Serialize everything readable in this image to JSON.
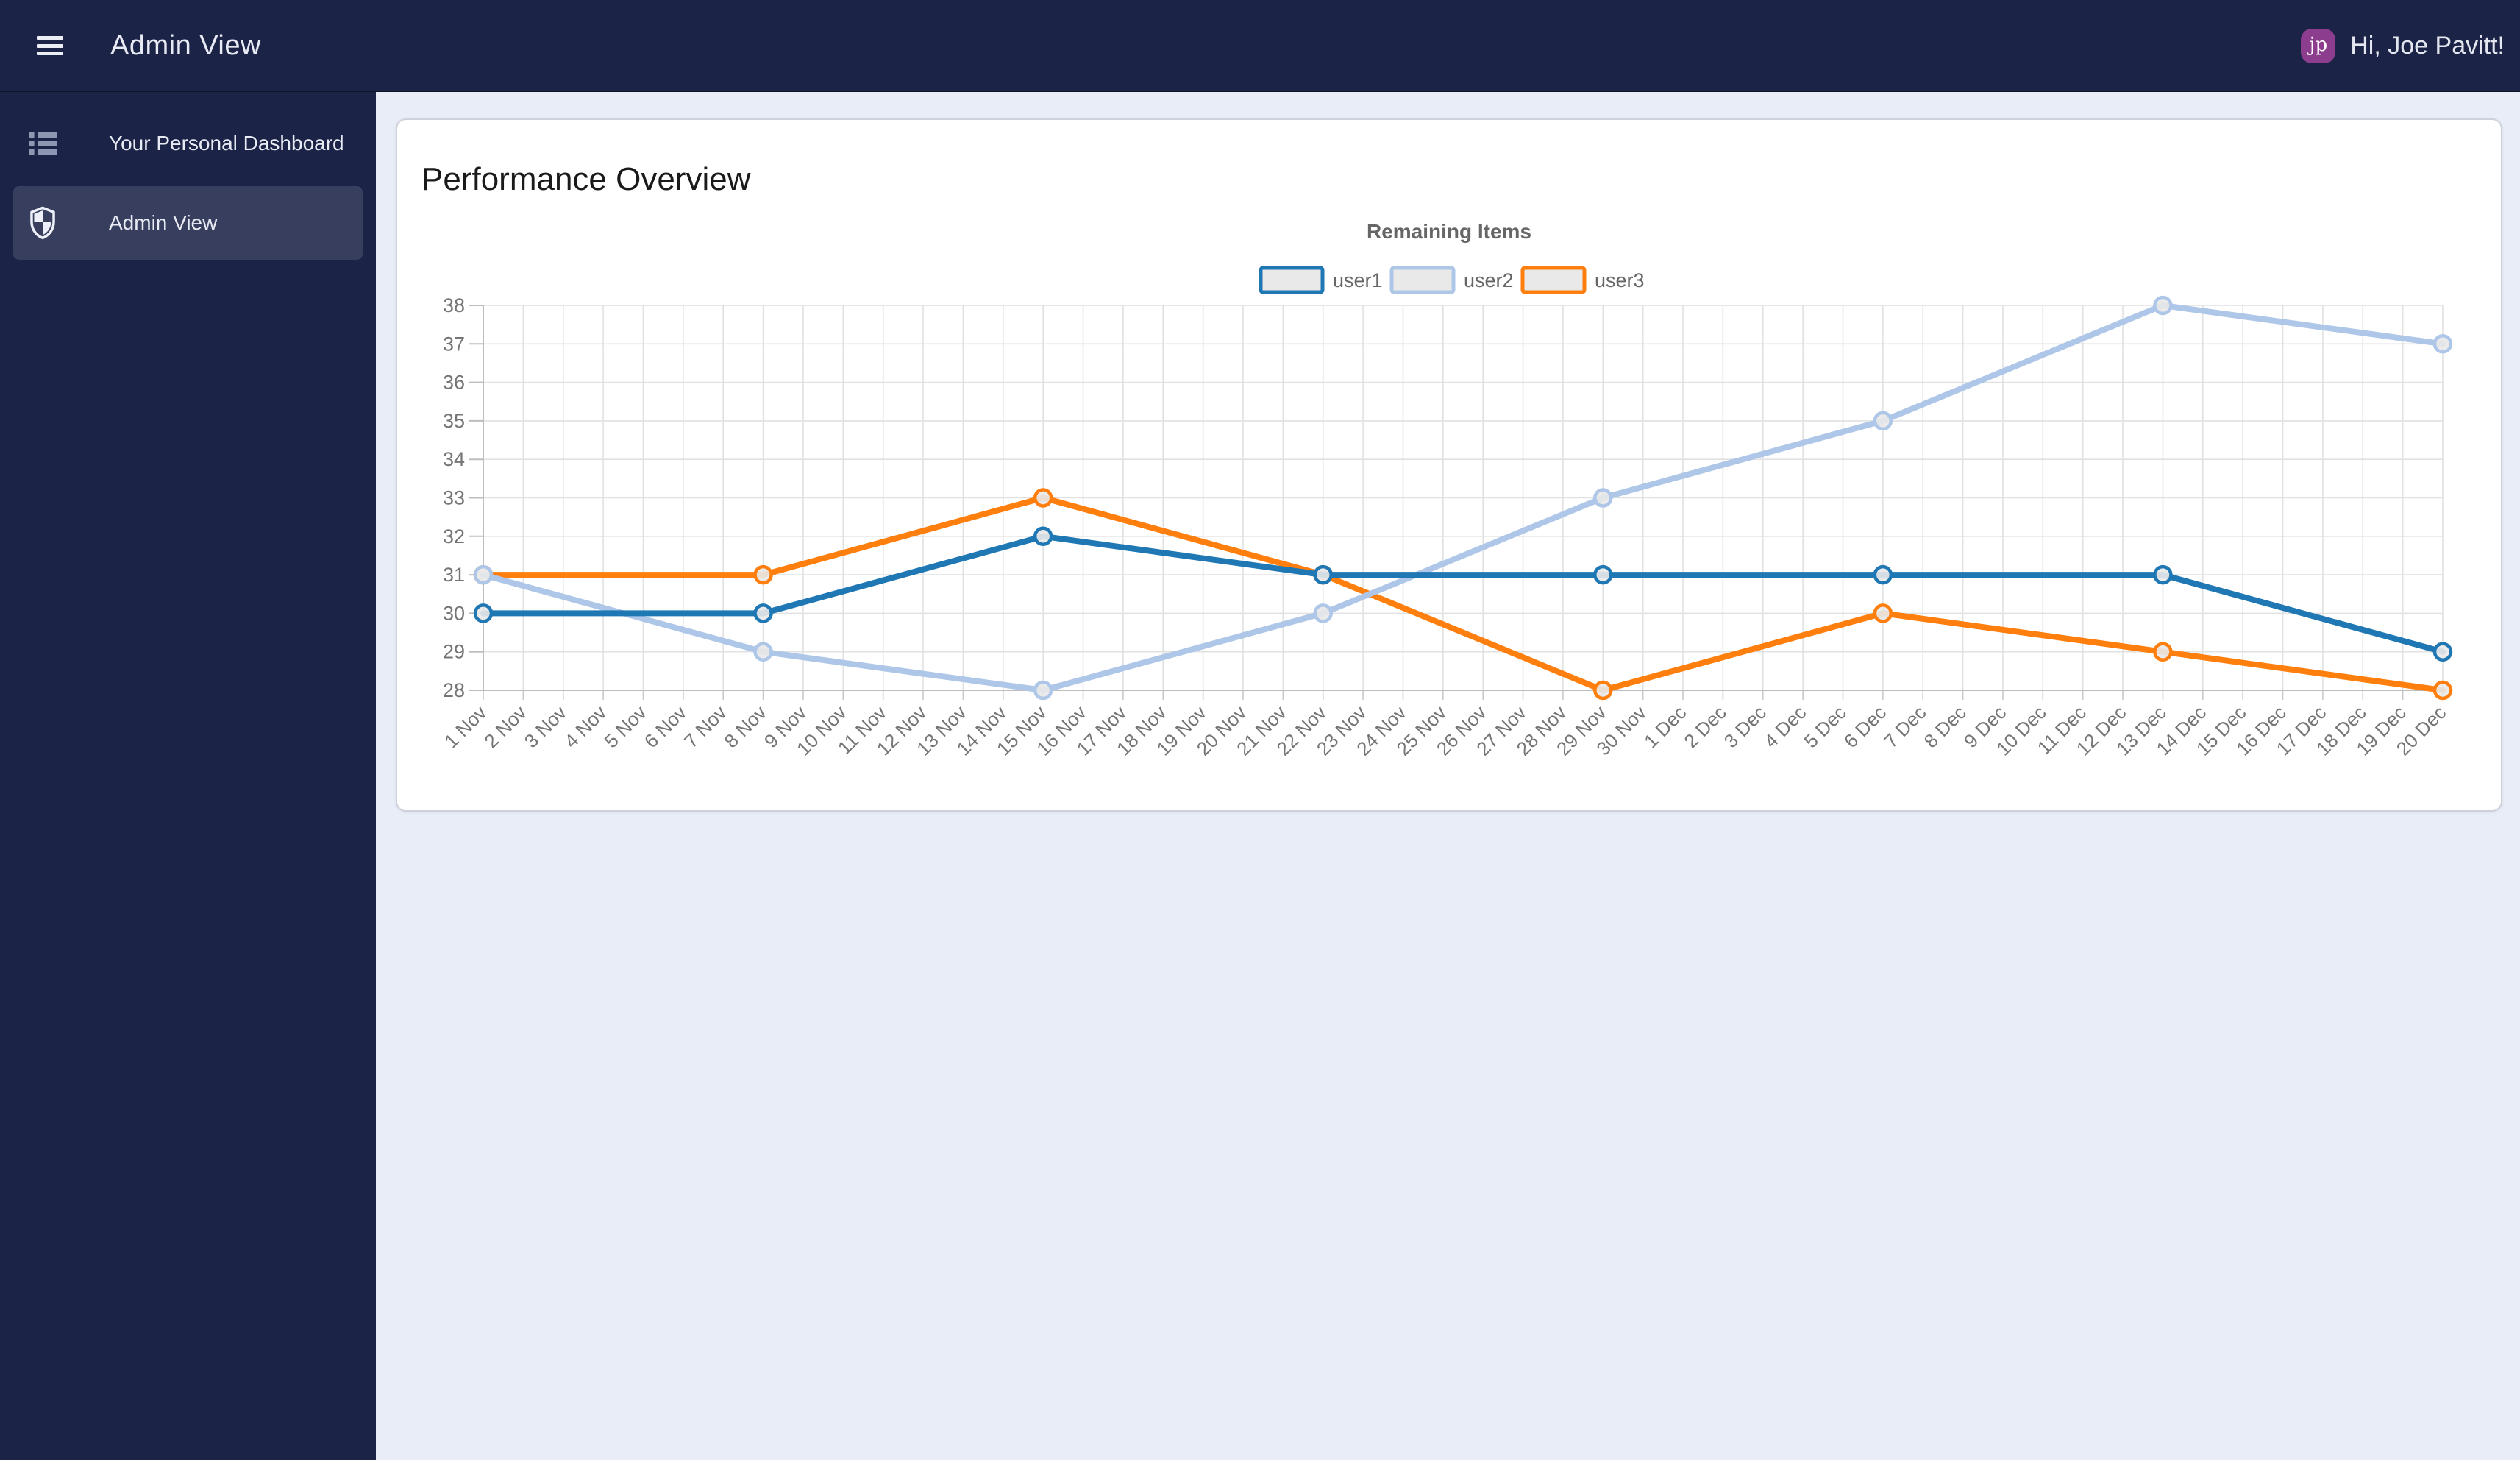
{
  "header": {
    "title": "Admin View",
    "greeting": "Hi, Joe Pavitt!",
    "avatar_initials": "jp",
    "bar_color": "#1b2347",
    "avatar_color": "#8d3d8d"
  },
  "sidebar": {
    "items": [
      {
        "label": "Your Personal Dashboard",
        "icon": "dashboard-list-icon",
        "active": false
      },
      {
        "label": "Admin View",
        "icon": "shield-icon",
        "active": true
      }
    ]
  },
  "main": {
    "card_title": "Performance Overview"
  },
  "chart_data": {
    "type": "line",
    "title": "Remaining Items",
    "legend_position": "top",
    "grid": true,
    "ylim": [
      28,
      38
    ],
    "ytick_step": 1,
    "grid_color": "#e1e1e1",
    "axis_color": "#bdbdbd",
    "tick_color": "#c9c9c9",
    "label_color": "#757575",
    "title_color": "#666666",
    "legend_text_color": "#666666",
    "point_fill": "#e9e9e9",
    "categories": [
      "1 Nov",
      "2 Nov",
      "3 Nov",
      "4 Nov",
      "5 Nov",
      "6 Nov",
      "7 Nov",
      "8 Nov",
      "9 Nov",
      "10 Nov",
      "11 Nov",
      "12 Nov",
      "13 Nov",
      "14 Nov",
      "15 Nov",
      "16 Nov",
      "17 Nov",
      "18 Nov",
      "19 Nov",
      "20 Nov",
      "21 Nov",
      "22 Nov",
      "23 Nov",
      "24 Nov",
      "25 Nov",
      "26 Nov",
      "27 Nov",
      "28 Nov",
      "29 Nov",
      "30 Nov",
      "1 Dec",
      "2 Dec",
      "3 Dec",
      "4 Dec",
      "5 Dec",
      "6 Dec",
      "7 Dec",
      "8 Dec",
      "9 Dec",
      "10 Dec",
      "11 Dec",
      "12 Dec",
      "13 Dec",
      "14 Dec",
      "15 Dec",
      "16 Dec",
      "17 Dec",
      "18 Dec",
      "19 Dec",
      "20 Dec"
    ],
    "series": [
      {
        "name": "user1",
        "color": "#1f77b4",
        "x": [
          "1 Nov",
          "8 Nov",
          "15 Nov",
          "22 Nov",
          "29 Nov",
          "6 Dec",
          "13 Dec",
          "20 Dec"
        ],
        "values": [
          30,
          30,
          32,
          31,
          31,
          31,
          31,
          29
        ]
      },
      {
        "name": "user2",
        "color": "#aec7e8",
        "x": [
          "1 Nov",
          "8 Nov",
          "15 Nov",
          "22 Nov",
          "29 Nov",
          "6 Dec",
          "13 Dec",
          "20 Dec"
        ],
        "values": [
          31,
          29,
          28,
          30,
          33,
          35,
          38,
          37
        ]
      },
      {
        "name": "user3",
        "color": "#ff7f0e",
        "x": [
          "1 Nov",
          "8 Nov",
          "15 Nov",
          "22 Nov",
          "29 Nov",
          "6 Dec",
          "13 Dec",
          "20 Dec"
        ],
        "values": [
          31,
          31,
          33,
          31,
          28,
          30,
          29,
          28
        ]
      }
    ]
  }
}
